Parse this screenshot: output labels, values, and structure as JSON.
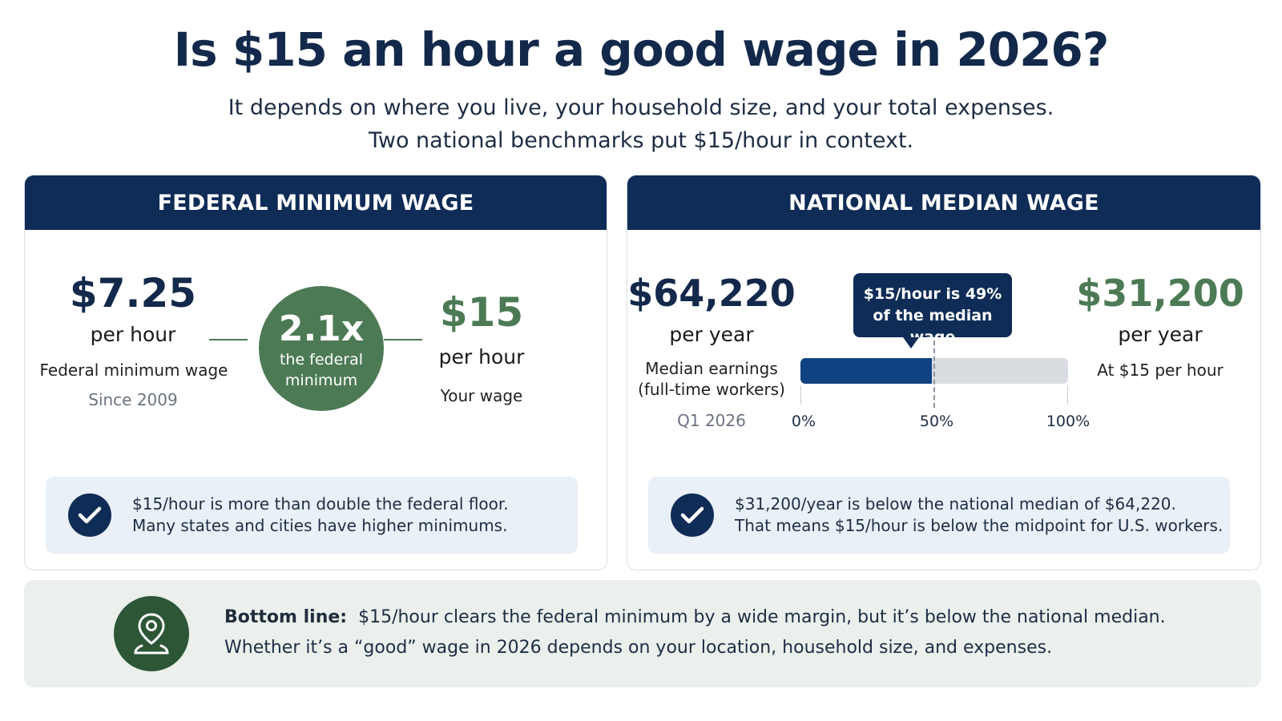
{
  "header": {
    "title": "Is $15 an hour a good wage in 2026?",
    "subtitle_line1": "It depends on where you live, your household size, and your total expenses.",
    "subtitle_line2": "Two national benchmarks put $15/hour in context."
  },
  "federal": {
    "heading": "FEDERAL MINIMUM WAGE",
    "min_value": "$7.25",
    "min_unit": "per hour",
    "min_desc": "Federal minimum wage",
    "min_since": "Since 2009",
    "ratio": "2.1x",
    "ratio_caption_line1": "the federal",
    "ratio_caption_line2": "minimum",
    "your_value": "$15",
    "your_unit": "per hour",
    "your_desc": "Your wage",
    "note_line1": "$15/hour is more than double the federal floor.",
    "note_line2": "Many states and cities have higher minimums."
  },
  "median": {
    "heading": "NATIONAL MEDIAN WAGE",
    "median_value": "$64,220",
    "median_unit": "per year",
    "median_desc_line1": "Median earnings",
    "median_desc_line2": "(full-time workers)",
    "median_period": "Q1 2026",
    "tooltip_line1": "$15/hour is 49%",
    "tooltip_line2": "of the median wage",
    "bar_fraction": 0.49,
    "axis_min": "0%",
    "axis_mid": "50%",
    "axis_max": "100%",
    "annual_value": "$31,200",
    "annual_unit": "per year",
    "annual_desc": "At $15 per hour",
    "note_line1": "$31,200/year is below the national median of $64,220.",
    "note_line2": "That means $15/hour is below the midpoint for U.S. workers."
  },
  "bottom": {
    "label": "Bottom line:",
    "line1": "$15/hour clears the federal minimum by a wide margin, but it’s below the national median.",
    "line2": "Whether it’s a “good” wage in 2026 depends on your location, household size, and expenses."
  },
  "icons": {
    "check": "check-icon",
    "location": "location-person-icon"
  },
  "colors": {
    "navy": "#0f2c57",
    "green": "#4c7a55",
    "bar_fill": "#0f4280"
  }
}
